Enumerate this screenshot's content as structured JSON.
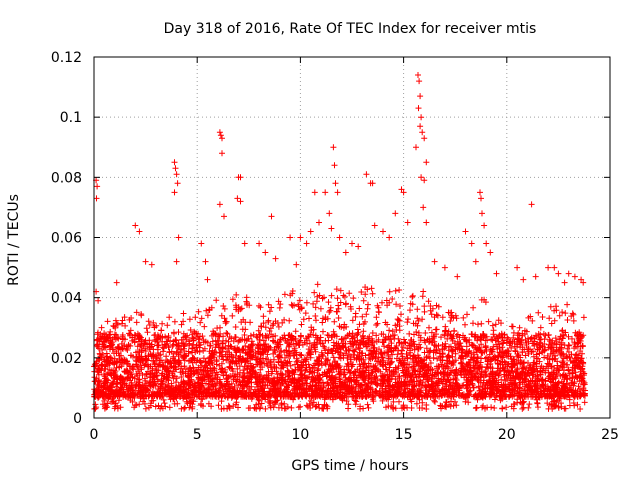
{
  "chart_data": {
    "type": "scatter",
    "title": "Day 318 of 2016, Rate Of TEC Index for receiver mtis",
    "xlabel": "GPS time / hours",
    "ylabel": "ROTI / TECUs",
    "xlim": [
      0,
      25
    ],
    "ylim": [
      0,
      0.12
    ],
    "xticks": [
      0,
      5,
      10,
      15,
      20,
      25
    ],
    "yticks": [
      0,
      0.02,
      0.04,
      0.06,
      0.08,
      0.1,
      0.12
    ],
    "xtick_labels": [
      "0",
      "5",
      "10",
      "15",
      "20",
      "25"
    ],
    "ytick_labels": [
      "0",
      "0.02",
      "0.04",
      "0.06",
      "0.08",
      "0.1",
      "0.12"
    ],
    "grid": true,
    "marker": "+",
    "color": "#ff0000",
    "x_data_range": [
      0,
      23.8
    ],
    "series": [
      {
        "name": "ROTI",
        "points": [
          [
            0.1,
            0.079
          ],
          [
            0.15,
            0.077
          ],
          [
            0.12,
            0.073
          ],
          [
            0.1,
            0.042
          ],
          [
            0.2,
            0.039
          ],
          [
            1.1,
            0.045
          ],
          [
            2.0,
            0.064
          ],
          [
            2.2,
            0.062
          ],
          [
            2.5,
            0.052
          ],
          [
            2.8,
            0.051
          ],
          [
            3.9,
            0.085
          ],
          [
            3.95,
            0.083
          ],
          [
            4.0,
            0.081
          ],
          [
            4.05,
            0.078
          ],
          [
            3.9,
            0.075
          ],
          [
            4.1,
            0.06
          ],
          [
            4.0,
            0.052
          ],
          [
            5.2,
            0.058
          ],
          [
            5.4,
            0.052
          ],
          [
            5.5,
            0.046
          ],
          [
            6.1,
            0.095
          ],
          [
            6.15,
            0.094
          ],
          [
            6.2,
            0.093
          ],
          [
            6.2,
            0.088
          ],
          [
            6.1,
            0.071
          ],
          [
            6.3,
            0.067
          ],
          [
            7.0,
            0.08
          ],
          [
            7.1,
            0.08
          ],
          [
            6.95,
            0.073
          ],
          [
            7.1,
            0.072
          ],
          [
            7.3,
            0.058
          ],
          [
            8.0,
            0.058
          ],
          [
            8.3,
            0.055
          ],
          [
            8.6,
            0.067
          ],
          [
            8.8,
            0.053
          ],
          [
            9.5,
            0.06
          ],
          [
            9.8,
            0.051
          ],
          [
            10.0,
            0.06
          ],
          [
            10.3,
            0.058
          ],
          [
            10.5,
            0.062
          ],
          [
            10.7,
            0.075
          ],
          [
            10.9,
            0.065
          ],
          [
            11.2,
            0.075
          ],
          [
            11.4,
            0.068
          ],
          [
            11.5,
            0.063
          ],
          [
            11.6,
            0.09
          ],
          [
            11.65,
            0.084
          ],
          [
            11.7,
            0.078
          ],
          [
            11.8,
            0.075
          ],
          [
            11.9,
            0.06
          ],
          [
            12.2,
            0.055
          ],
          [
            12.5,
            0.058
          ],
          [
            12.8,
            0.057
          ],
          [
            13.2,
            0.081
          ],
          [
            13.4,
            0.078
          ],
          [
            13.5,
            0.078
          ],
          [
            13.6,
            0.064
          ],
          [
            14.0,
            0.062
          ],
          [
            14.3,
            0.06
          ],
          [
            14.6,
            0.068
          ],
          [
            14.9,
            0.076
          ],
          [
            15.0,
            0.075
          ],
          [
            15.2,
            0.065
          ],
          [
            15.7,
            0.114
          ],
          [
            15.75,
            0.112
          ],
          [
            15.8,
            0.107
          ],
          [
            15.72,
            0.103
          ],
          [
            15.85,
            0.1
          ],
          [
            15.8,
            0.097
          ],
          [
            15.6,
            0.09
          ],
          [
            15.9,
            0.095
          ],
          [
            16.0,
            0.093
          ],
          [
            15.85,
            0.08
          ],
          [
            16.0,
            0.079
          ],
          [
            16.1,
            0.085
          ],
          [
            15.95,
            0.07
          ],
          [
            16.1,
            0.065
          ],
          [
            16.5,
            0.052
          ],
          [
            17.0,
            0.05
          ],
          [
            17.6,
            0.047
          ],
          [
            18.0,
            0.062
          ],
          [
            18.3,
            0.058
          ],
          [
            18.5,
            0.052
          ],
          [
            18.7,
            0.075
          ],
          [
            18.75,
            0.073
          ],
          [
            18.8,
            0.068
          ],
          [
            18.9,
            0.064
          ],
          [
            19.0,
            0.058
          ],
          [
            19.2,
            0.055
          ],
          [
            19.5,
            0.048
          ],
          [
            20.5,
            0.05
          ],
          [
            20.8,
            0.046
          ],
          [
            21.2,
            0.071
          ],
          [
            21.4,
            0.047
          ],
          [
            22.0,
            0.05
          ],
          [
            22.3,
            0.05
          ],
          [
            22.5,
            0.048
          ],
          [
            22.8,
            0.045
          ],
          [
            23.0,
            0.048
          ],
          [
            23.3,
            0.047
          ],
          [
            23.6,
            0.046
          ],
          [
            23.7,
            0.045
          ]
        ],
        "dense_band": {
          "description_units": "ROTI TECUs",
          "x_start": 0,
          "x_end": 23.8,
          "baseline_min": 0.003,
          "typical_center": 0.016,
          "upper_envelope": [
            [
              0,
              0.031
            ],
            [
              1,
              0.033
            ],
            [
              2,
              0.036
            ],
            [
              3,
              0.031
            ],
            [
              4,
              0.035
            ],
            [
              5,
              0.037
            ],
            [
              6,
              0.04
            ],
            [
              7,
              0.042
            ],
            [
              8,
              0.038
            ],
            [
              9,
              0.041
            ],
            [
              10,
              0.043
            ],
            [
              11,
              0.046
            ],
            [
              12,
              0.047
            ],
            [
              13,
              0.046
            ],
            [
              14,
              0.045
            ],
            [
              15,
              0.043
            ],
            [
              16,
              0.042
            ],
            [
              17,
              0.035
            ],
            [
              18,
              0.038
            ],
            [
              19,
              0.04
            ],
            [
              20,
              0.03
            ],
            [
              21,
              0.034
            ],
            [
              22,
              0.038
            ],
            [
              23,
              0.039
            ],
            [
              23.8,
              0.036
            ]
          ]
        }
      }
    ]
  }
}
